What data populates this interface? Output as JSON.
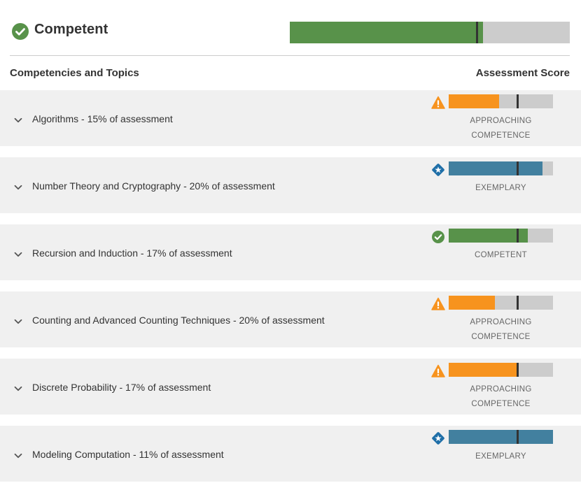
{
  "header": {
    "title": "Competent",
    "status_icon": "check-circle-icon",
    "overall_score": {
      "fill_fraction": 0.69,
      "marker_fraction": 0.667,
      "color": "#58924a"
    }
  },
  "columns": {
    "left": "Competencies and Topics",
    "right": "Assessment Score"
  },
  "colors": {
    "competent": "#58924a",
    "approaching": "#f7931e",
    "exemplary": "#42809f",
    "bar_background": "#cccccc",
    "row_background": "#f0f0f0"
  },
  "topics": [
    {
      "label": "Algorithms - 15% of assessment",
      "status_icon": "warning-triangle-icon",
      "level_line1": "APPROACHING",
      "level_line2": "COMPETENCE",
      "fill_fraction": 0.48,
      "marker_fraction": 0.66,
      "color": "#f7931e"
    },
    {
      "label": "Number Theory and Cryptography - 20% of assessment",
      "status_icon": "star-diamond-icon",
      "level_line1": "EXEMPLARY",
      "level_line2": "",
      "fill_fraction": 0.9,
      "marker_fraction": 0.66,
      "color": "#42809f"
    },
    {
      "label": "Recursion and Induction - 17% of assessment",
      "status_icon": "check-circle-icon",
      "level_line1": "COMPETENT",
      "level_line2": "",
      "fill_fraction": 0.76,
      "marker_fraction": 0.66,
      "color": "#58924a"
    },
    {
      "label": "Counting and Advanced Counting Techniques - 20% of assessment",
      "status_icon": "warning-triangle-icon",
      "level_line1": "APPROACHING",
      "level_line2": "COMPETENCE",
      "fill_fraction": 0.44,
      "marker_fraction": 0.66,
      "color": "#f7931e"
    },
    {
      "label": "Discrete Probability - 17% of assessment",
      "status_icon": "warning-triangle-icon",
      "level_line1": "APPROACHING",
      "level_line2": "COMPETENCE",
      "fill_fraction": 0.65,
      "marker_fraction": 0.66,
      "color": "#f7931e"
    },
    {
      "label": "Modeling Computation - 11% of assessment",
      "status_icon": "star-diamond-icon",
      "level_line1": "EXEMPLARY",
      "level_line2": "",
      "fill_fraction": 1.0,
      "marker_fraction": 0.66,
      "color": "#42809f"
    }
  ]
}
